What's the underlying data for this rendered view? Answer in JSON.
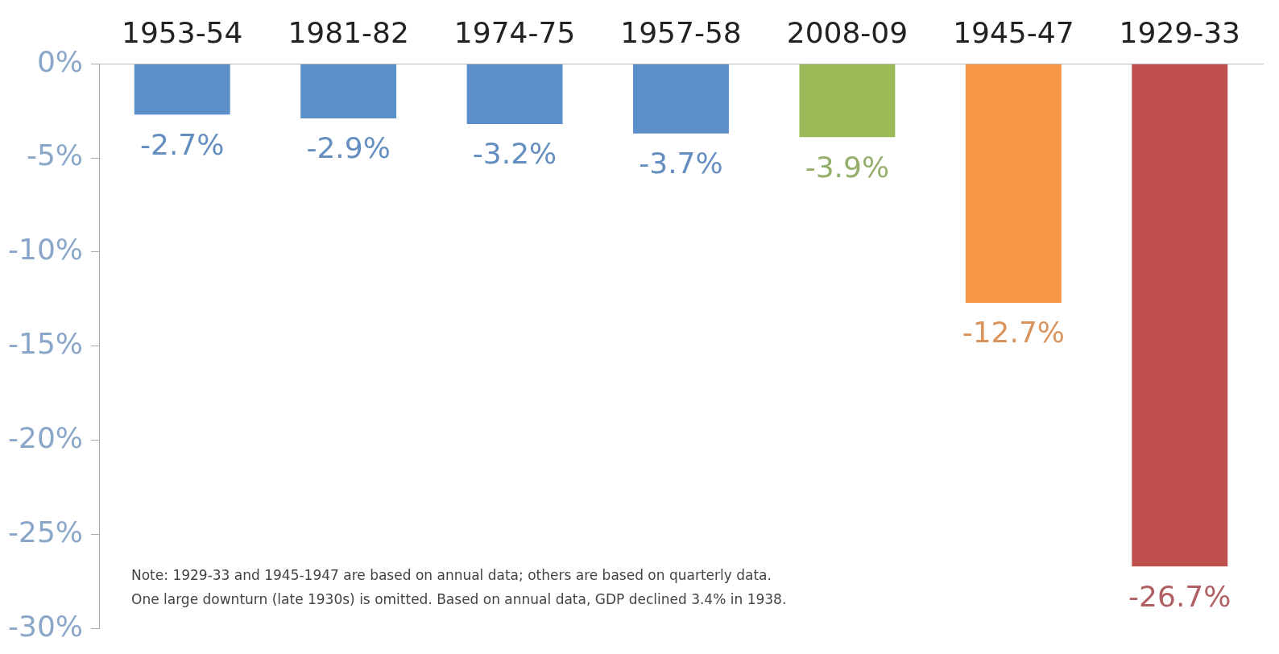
{
  "chart_data": {
    "type": "bar",
    "categories": [
      "1953-54",
      "1981-82",
      "1974-75",
      "1957-58",
      "2008-09",
      "1945-47",
      "1929-33"
    ],
    "values": [
      -2.7,
      -2.9,
      -3.2,
      -3.7,
      -3.9,
      -12.7,
      -26.7
    ],
    "colors": [
      "#5b8fc9",
      "#5b8fc9",
      "#5b8fc9",
      "#5b8fc9",
      "#9bbb59",
      "#f79646",
      "#c0504d"
    ],
    "value_labels": [
      "-2.7%",
      "-2.9%",
      "-3.2%",
      "-3.7%",
      "-3.9%",
      "-12.7%",
      "-26.7%"
    ],
    "ylim": [
      -30,
      0
    ],
    "yticks": [
      {
        "value": 0,
        "label": "0%"
      },
      {
        "value": -5,
        "label": "-5%"
      },
      {
        "value": -10,
        "label": "-10%"
      },
      {
        "value": -15,
        "label": "-15%"
      },
      {
        "value": -20,
        "label": "-20%"
      },
      {
        "value": -25,
        "label": "-25%"
      },
      {
        "value": -30,
        "label": "-30%"
      }
    ],
    "grid": false,
    "legend": false,
    "annotations": [
      "Note: 1929-33 and 1945-1947 are based on annual data; others are based on quarterly data.",
      "One large downturn (late 1930s) is omitted. Based on annual data, GDP declined 3.4% in 1938."
    ]
  }
}
